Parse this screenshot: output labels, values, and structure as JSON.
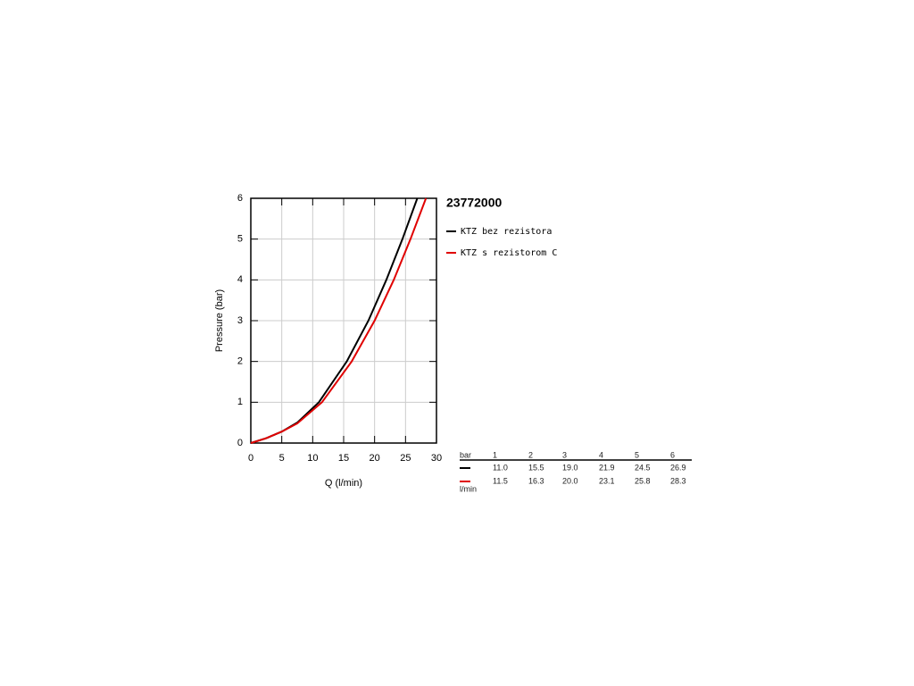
{
  "chart_data": {
    "type": "line",
    "title": "23772000",
    "x_label": "Q (l/min)",
    "y_label": "Pressure (bar)",
    "xlim": [
      0,
      30
    ],
    "xticks": [
      0,
      5,
      10,
      15,
      20,
      25,
      30
    ],
    "ylim": [
      0,
      6
    ],
    "yticks": [
      0,
      1,
      2,
      3,
      4,
      5,
      6
    ],
    "grid": true,
    "series": [
      {
        "name": "KTZ bez rezistora",
        "color": "#000000",
        "x": [
          0,
          2.5,
          5,
          7.5,
          11,
          15.5,
          19,
          21.9,
          24.5,
          26.9
        ],
        "values": [
          0,
          0.12,
          0.28,
          0.5,
          1,
          2,
          3,
          4,
          5,
          6
        ]
      },
      {
        "name": "KTZ s rezistorom C",
        "color": "#e00000",
        "x": [
          0,
          2.5,
          5,
          7.5,
          11.5,
          16.3,
          20,
          23.1,
          25.8,
          28.3
        ],
        "values": [
          0,
          0.12,
          0.28,
          0.48,
          1,
          2,
          3,
          4,
          5,
          6
        ]
      }
    ]
  },
  "table": {
    "unit_top": "bar",
    "unit_bottom": "l/min",
    "columns": [
      "1",
      "2",
      "3",
      "4",
      "5",
      "6"
    ],
    "rows": [
      [
        "11.0",
        "15.5",
        "19.0",
        "21.9",
        "24.5",
        "26.9"
      ],
      [
        "11.5",
        "16.3",
        "20.0",
        "23.1",
        "25.8",
        "28.3"
      ]
    ]
  }
}
